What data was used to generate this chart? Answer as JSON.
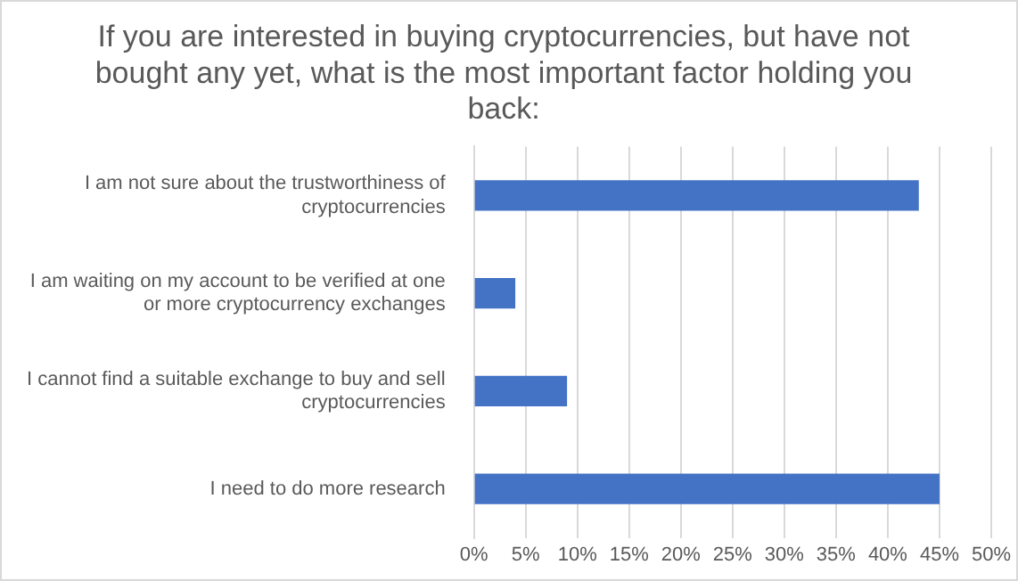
{
  "chart_data": {
    "type": "bar",
    "orientation": "horizontal",
    "title": "If you are interested in buying cryptocurrencies, but have not bought any yet, what is the most important factor holding you back:",
    "categories": [
      "I am not sure about the trustworthiness of cryptocurrencies",
      "I am waiting on my account to be verified at one or more cryptocurrency exchanges",
      "I cannot find a suitable exchange to buy and sell cryptocurrencies",
      "I need to do more research"
    ],
    "values": [
      43,
      4,
      9,
      45
    ],
    "color": "#4472c4",
    "xlim": [
      0,
      50
    ],
    "xticks": [
      {
        "value": 0,
        "label": "0%"
      },
      {
        "value": 5,
        "label": "5%"
      },
      {
        "value": 10,
        "label": "10%"
      },
      {
        "value": 15,
        "label": "15%"
      },
      {
        "value": 20,
        "label": "20%"
      },
      {
        "value": 25,
        "label": "25%"
      },
      {
        "value": 30,
        "label": "30%"
      },
      {
        "value": 35,
        "label": "35%"
      },
      {
        "value": 40,
        "label": "40%"
      },
      {
        "value": 45,
        "label": "45%"
      },
      {
        "value": 50,
        "label": "50%"
      }
    ],
    "grid": "x",
    "legend": false
  }
}
